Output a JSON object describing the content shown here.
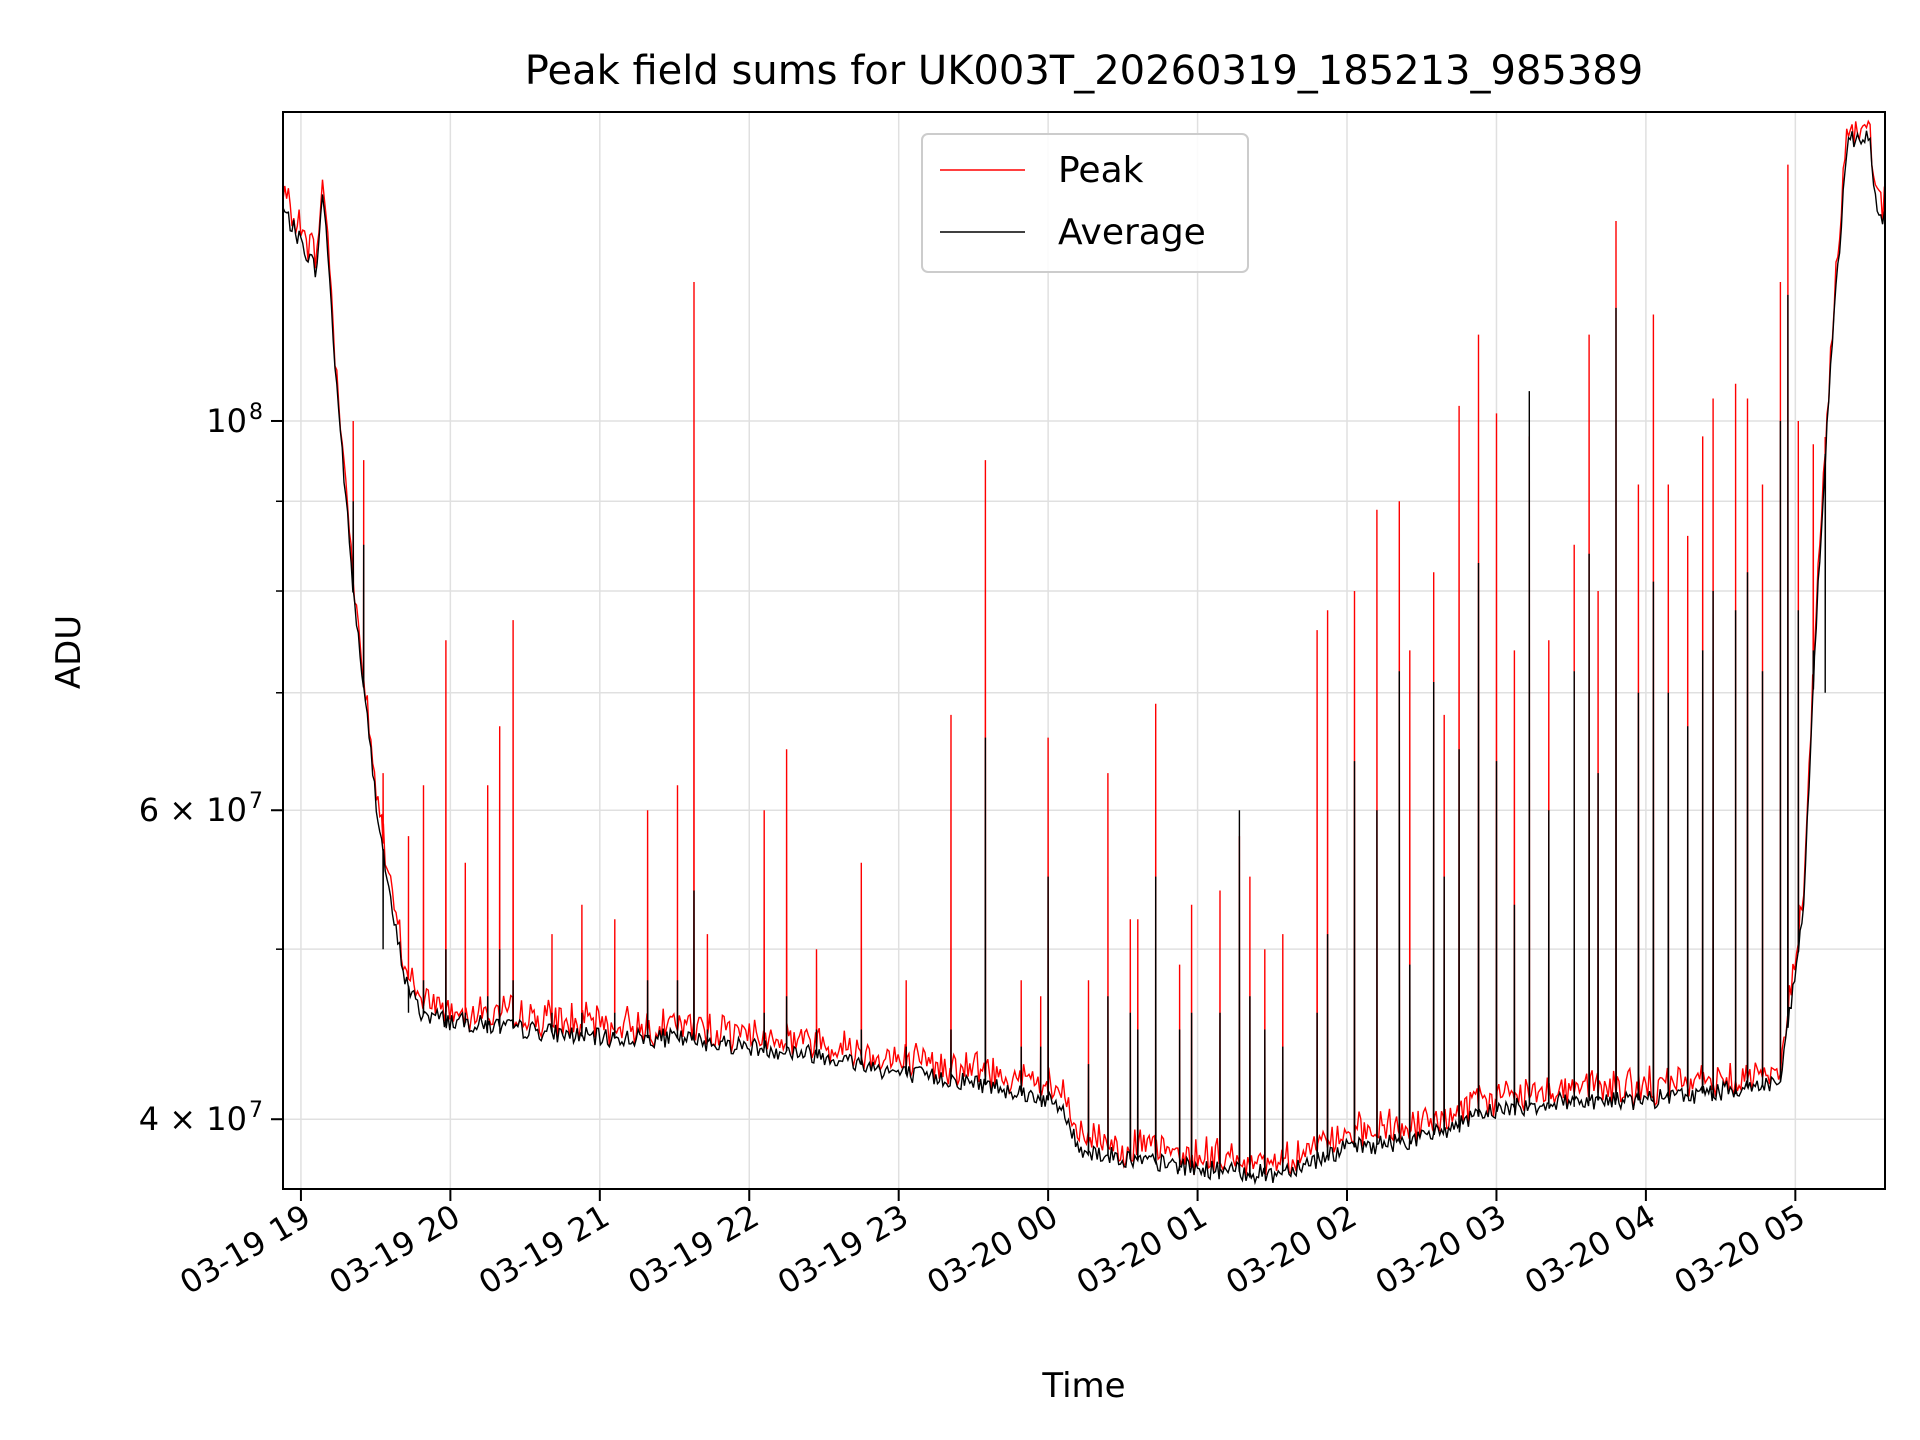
{
  "chart_data": {
    "type": "line",
    "title": "Peak field sums for UK003T_20260319_185213_985389",
    "xlabel": "Time",
    "ylabel": "ADU",
    "y_scale": "log",
    "ylim": [
      36500000,
      150000000
    ],
    "xlim_hours": [
      -0.12,
      10.6
    ],
    "grid": true,
    "legend_position": "top-center",
    "x_ticks": [
      {
        "hour": 0,
        "label": "03-19 19"
      },
      {
        "hour": 1,
        "label": "03-19 20"
      },
      {
        "hour": 2,
        "label": "03-19 21"
      },
      {
        "hour": 3,
        "label": "03-19 22"
      },
      {
        "hour": 4,
        "label": "03-19 23"
      },
      {
        "hour": 5,
        "label": "03-20 00"
      },
      {
        "hour": 6,
        "label": "03-20 01"
      },
      {
        "hour": 7,
        "label": "03-20 02"
      },
      {
        "hour": 8,
        "label": "03-20 03"
      },
      {
        "hour": 9,
        "label": "03-20 04"
      },
      {
        "hour": 10,
        "label": "03-20 05"
      }
    ],
    "y_ticks": [
      {
        "value": 40000000,
        "label": "4 × 10",
        "exp": "7"
      },
      {
        "value": 60000000,
        "label": "6 × 10",
        "exp": "7"
      },
      {
        "value": 100000000,
        "label": "10",
        "exp": "8"
      }
    ],
    "y_minor_ticks": [
      50000000,
      70000000,
      80000000,
      90000000
    ],
    "colors": {
      "peak": "#ff0000",
      "average": "#000000"
    },
    "average_baseline": {
      "hours": [
        -0.12,
        0.1,
        0.15,
        0.18,
        0.22,
        0.35,
        0.5,
        0.6,
        0.7,
        0.8,
        1.0,
        1.5,
        2.0,
        2.5,
        3.0,
        3.5,
        4.0,
        4.5,
        4.8,
        5.0,
        5.1,
        5.2,
        5.5,
        6.0,
        6.5,
        7.0,
        7.5,
        8.0,
        8.5,
        9.0,
        9.5,
        9.9,
        10.05,
        10.15,
        10.25,
        10.35,
        10.5,
        10.55,
        10.6
      ],
      "values": [
        132000000,
        122000000,
        135000000,
        125000000,
        110000000,
        80000000,
        61000000,
        53000000,
        48000000,
        46000000,
        45500000,
        45000000,
        44500000,
        44500000,
        44000000,
        43500000,
        42500000,
        42000000,
        41500000,
        41000000,
        40500000,
        38500000,
        38000000,
        37500000,
        37200000,
        38500000,
        39000000,
        40500000,
        41000000,
        41000000,
        41500000,
        42000000,
        52000000,
        80000000,
        112000000,
        145000000,
        145000000,
        130000000,
        131000000
      ]
    },
    "spike_series": {
      "hours": [
        0.35,
        0.42,
        0.55,
        0.72,
        0.82,
        0.97,
        1.1,
        1.25,
        1.33,
        1.42,
        1.68,
        1.88,
        2.1,
        2.32,
        2.52,
        2.63,
        2.72,
        3.1,
        3.25,
        3.45,
        3.75,
        4.05,
        4.35,
        4.58,
        4.82,
        4.95,
        5.0,
        5.27,
        5.4,
        5.55,
        5.6,
        5.72,
        5.88,
        5.96,
        6.15,
        6.28,
        6.35,
        6.45,
        6.57,
        6.8,
        6.87,
        7.05,
        7.2,
        7.35,
        7.42,
        7.58,
        7.65,
        7.75,
        7.88,
        8.0,
        8.12,
        8.22,
        8.35,
        8.52,
        8.62,
        8.68,
        8.8,
        8.95,
        9.05,
        9.15,
        9.28,
        9.38,
        9.45,
        9.6,
        9.68,
        9.78,
        9.9,
        9.95,
        10.02,
        10.12,
        10.2
      ],
      "peak": [
        100000000,
        95000000,
        63000000,
        58000000,
        62000000,
        75000000,
        56000000,
        62000000,
        67000000,
        77000000,
        51000000,
        53000000,
        52000000,
        60000000,
        62000000,
        120000000,
        51000000,
        60000000,
        65000000,
        50000000,
        56000000,
        48000000,
        68000000,
        95000000,
        48000000,
        47000000,
        66000000,
        48000000,
        63000000,
        52000000,
        52000000,
        69000000,
        49000000,
        53000000,
        54000000,
        58000000,
        55000000,
        50000000,
        51000000,
        76000000,
        78000000,
        80000000,
        89000000,
        90000000,
        74000000,
        82000000,
        68000000,
        102000000,
        112000000,
        101000000,
        74000000,
        98000000,
        75000000,
        85000000,
        112000000,
        80000000,
        130000000,
        92000000,
        115000000,
        92000000,
        86000000,
        98000000,
        103000000,
        105000000,
        103000000,
        92000000,
        120000000,
        140000000,
        100000000,
        97000000,
        92000000
      ],
      "average": [
        90000000,
        85000000,
        50000000,
        46000000,
        48000000,
        50000000,
        46000000,
        47000000,
        50000000,
        48000000,
        46000000,
        46000000,
        46000000,
        48000000,
        48000000,
        54000000,
        45000000,
        46000000,
        47000000,
        45000000,
        45000000,
        44000000,
        45000000,
        66000000,
        44000000,
        44000000,
        55000000,
        43000000,
        47000000,
        46000000,
        45000000,
        55000000,
        45000000,
        46000000,
        46000000,
        60000000,
        47000000,
        45000000,
        44000000,
        46000000,
        51000000,
        64000000,
        60000000,
        72000000,
        49000000,
        71000000,
        55000000,
        65000000,
        83000000,
        64000000,
        53000000,
        104000000,
        60000000,
        72000000,
        84000000,
        63000000,
        116000000,
        70000000,
        81000000,
        70000000,
        67000000,
        74000000,
        80000000,
        78000000,
        82000000,
        72000000,
        100000000,
        118000000,
        78000000,
        74000000,
        70000000
      ]
    },
    "legend": [
      {
        "name": "Peak",
        "color": "#ff0000"
      },
      {
        "name": "Average",
        "color": "#000000"
      }
    ]
  }
}
